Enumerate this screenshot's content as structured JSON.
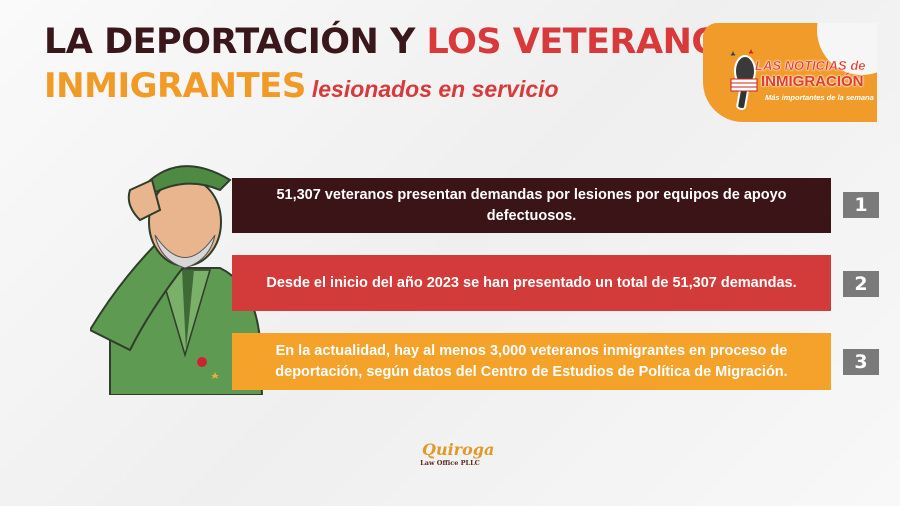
{
  "title": {
    "line1_dark": "LA DEPORTACIÓN Y",
    "line1_red": "LOS VETERANOS",
    "line2_orange": "INMIGRANTES",
    "line2_sub": "lesionados en servicio"
  },
  "logo": {
    "line1": "LAS NOTICIAS de",
    "line2": "INMIGRACIÓN",
    "line3": "Más importantes de la semana"
  },
  "items": [
    {
      "number": "1",
      "text": "51,307 veteranos presentan demandas por lesiones por equipos de apoyo defectuosos.",
      "color": "#3a1417"
    },
    {
      "number": "2",
      "text": "Desde el inicio del año 2023 se han presentado un total de 51,307 demandas.",
      "color": "#d33b3b"
    },
    {
      "number": "3",
      "text": "En la actualidad, hay al menos 3,000 veteranos inmigrantes en proceso de deportación, según datos del Centro de Estudios de Política de Migración.",
      "color": "#f4a22a"
    }
  ],
  "firm": {
    "name": "Quiroga",
    "sub": "Law Office PLLC"
  }
}
